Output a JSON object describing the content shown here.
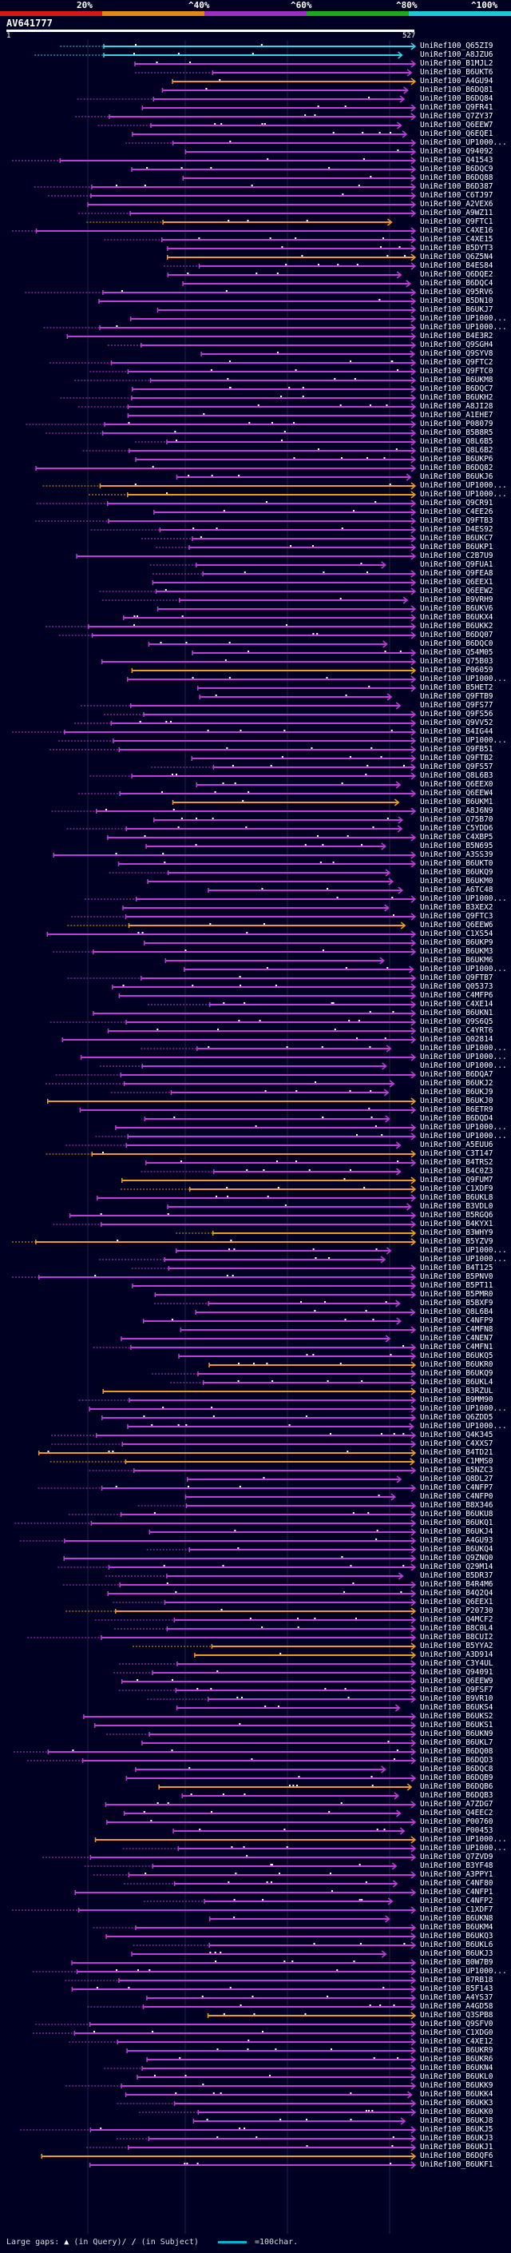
{
  "scale": {
    "labels": [
      "20%",
      "^40%",
      "^60%",
      "^80%",
      "^100%"
    ],
    "colors": [
      "#d81818",
      "#e08a1a",
      "#9b2fc0",
      "#1fa81f",
      "#1cc8d8"
    ]
  },
  "query": {
    "name": "AV641777",
    "start": "1",
    "end": "527"
  },
  "hit_color_main": "#c13bd9",
  "hit_color_orange": "#f09a1e",
  "hit_color_cyan": "#33d6e6",
  "hits": [
    "UniRef100_Q65ZI9",
    "UniRef100_A8JZU6",
    "UniRef100_B1MJL2",
    "UniRef100_B6UKT6",
    "UniRef100_A4GU94",
    "UniRef100_B6DQ81",
    "UniRef100_B6DQ84",
    "UniRef100_Q9FR41",
    "UniRef100_Q7ZY37",
    "UniRef100_Q6EEW7",
    "UniRef100_Q6EQE1",
    "UniRef100_UP1000...",
    "UniRef100_Q94092",
    "UniRef100_Q41543",
    "UniRef100_B6DQC9",
    "UniRef100_B6DQ88",
    "UniRef100_B6D387",
    "UniRef100_C6TJ97",
    "UniRef100_A2VEX6",
    "UniRef100_A9WZ11",
    "UniRef100_Q9FTC1",
    "UniRef100_C4XE16",
    "UniRef100_C4XE15",
    "UniRef100_B5DYT3",
    "UniRef100_Q6Z5N4",
    "UniRef100_B4ES84",
    "UniRef100_Q6DQE2",
    "UniRef100_B6DQC4",
    "UniRef100_Q95RV6",
    "UniRef100_B5DN10",
    "UniRef100_B6UKJ7",
    "UniRef100_UP1000...",
    "UniRef100_UP1000...",
    "UniRef100_B4E3R2",
    "UniRef100_Q9SGH4",
    "UniRef100_Q9SYV8",
    "UniRef100_Q9FTC2",
    "UniRef100_Q9FTC0",
    "UniRef100_B6UKM8",
    "UniRef100_B6DQC7",
    "UniRef100_B6UKH2",
    "UniRef100_A8JI28",
    "UniRef100_A1EHE7",
    "UniRef100_P08079",
    "UniRef100_B5B8R5",
    "UniRef100_Q8L6B5",
    "UniRef100_Q8L6B2",
    "UniRef100_B6UKP6",
    "UniRef100_B6DQ82",
    "UniRef100_B6UKJ6",
    "UniRef100_UP1000...",
    "UniRef100_UP1000...",
    "UniRef100_Q9CR91",
    "UniRef100_C4EE26",
    "UniRef100_Q9FTB3",
    "UniRef100_D4ES92",
    "UniRef100_B6UKC7",
    "UniRef100_B6UKP1",
    "UniRef100_C2B7U9",
    "UniRef100_Q9FUA1",
    "UniRef100_Q9FEA8",
    "UniRef100_Q6EEX1",
    "UniRef100_Q6EEW2",
    "UniRef100_B9VRH9",
    "UniRef100_B6UKV6",
    "UniRef100_B6UKX4",
    "UniRef100_B6UKK2",
    "UniRef100_B6DQ07",
    "UniRef100_B6DQC0",
    "UniRef100_Q54M05",
    "UniRef100_Q75B03",
    "UniRef100_P06059",
    "UniRef100_UP1000...",
    "UniRef100_B5HET2",
    "UniRef100_Q9FTB9",
    "UniRef100_Q9FS77",
    "UniRef100_Q9FS56",
    "UniRef100_Q9VV52",
    "UniRef100_B4IG44",
    "UniRef100_UP1000...",
    "UniRef100_Q9FB51",
    "UniRef100_Q9FTB2",
    "UniRef100_Q9FS57",
    "UniRef100_Q8L6B3",
    "UniRef100_Q6EEX0",
    "UniRef100_Q6EEW4",
    "UniRef100_B6UKM1",
    "UniRef100_A8J6N9",
    "UniRef100_Q75B70",
    "UniRef100_C5YDD6",
    "UniRef100_C4XBP5",
    "UniRef100_B5N695",
    "UniRef100_A3SS39",
    "UniRef100_B6UKT0",
    "UniRef100_B6UKQ9",
    "UniRef100_B6UKM0",
    "UniRef100_A6TC48",
    "UniRef100_UP1000...",
    "UniRef100_B3XEX2",
    "UniRef100_Q9FTC3",
    "UniRef100_Q6EEW6",
    "UniRef100_C1XS54",
    "UniRef100_B6UKP9",
    "UniRef100_B6UKM3",
    "UniRef100_B6UKM6",
    "UniRef100_UP1000...",
    "UniRef100_Q9FTB7",
    "UniRef100_Q05373",
    "UniRef100_C4MFP6",
    "UniRef100_C4XE14",
    "UniRef100_B6UKN1",
    "UniRef100_Q9S6Q5",
    "UniRef100_C4YRT6",
    "UniRef100_Q02814",
    "UniRef100_UP1000...",
    "UniRef100_UP1000...",
    "UniRef100_UP1000...",
    "UniRef100_B6DQA7",
    "UniRef100_B6UKJ2",
    "UniRef100_B6UKJ9",
    "UniRef100_B6UKJ0",
    "UniRef100_B6ETR9",
    "UniRef100_B6DQD4",
    "UniRef100_UP1000...",
    "UniRef100_UP1000...",
    "UniRef100_A5EUU6",
    "UniRef100_C3T147",
    "UniRef100_B4TRS2",
    "UniRef100_B4C0Z3",
    "UniRef100_Q9FUM7",
    "UniRef100_C1XDF9",
    "UniRef100_B6UKL8",
    "UniRef100_B3VDL0",
    "UniRef100_B5RGQ6",
    "UniRef100_B4KYX1",
    "UniRef100_B3WHY9",
    "UniRef100_B5YZV9",
    "UniRef100_UP1000...",
    "UniRef100_UP1000...",
    "UniRef100_B4T125",
    "UniRef100_B5PNV0",
    "UniRef100_B5PT11",
    "UniRef100_B5PMR0",
    "UniRef100_B5BXF9",
    "UniRef100_Q8L6B4",
    "UniRef100_C4NFP9",
    "UniRef100_C4MFN8",
    "UniRef100_C4NEN7",
    "UniRef100_C4MFN1",
    "UniRef100_B6UKQ5",
    "UniRef100_B6UKR0",
    "UniRef100_B6UKQ9",
    "UniRef100_B6UKL4",
    "UniRef100_B3RZUL",
    "UniRef100_B9MM90",
    "UniRef100_UP1000...",
    "UniRef100_Q6ZDD5",
    "UniRef100_UP1000...",
    "UniRef100_Q4K345",
    "UniRef100_C4XXS7",
    "UniRef100_B4TD21",
    "UniRef100_C1MMS0",
    "UniRef100_B5NZC3",
    "UniRef100_Q8DL27",
    "UniRef100_C4NFP7",
    "UniRef100_C4NFP0",
    "UniRef100_B8X346",
    "UniRef100_B6UKU8",
    "UniRef100_B6UKQ1",
    "UniRef100_B6UKJ4",
    "UniRef100_A4GU93",
    "UniRef100_B6UKQ4",
    "UniRef100_Q9ZNQ0",
    "UniRef100_Q29M14",
    "UniRef100_B5DR37",
    "UniRef100_B4R4M6",
    "UniRef100_B4Q2Q4",
    "UniRef100_Q6EEX1",
    "UniRef100_P20730",
    "UniRef100_Q4MCF2",
    "UniRef100_B8C0L4",
    "UniRef100_B8CUI2",
    "UniRef100_B5YYA2",
    "UniRef100_A3D914",
    "UniRef100_C3Y4UL",
    "UniRef100_Q94091",
    "UniRef100_Q6EEW9",
    "UniRef100_Q9FSF7",
    "UniRef100_B9VR10",
    "UniRef100_B6UKS4",
    "UniRef100_B6UKS2",
    "UniRef100_B6UKS1",
    "UniRef100_B6UKN9",
    "UniRef100_B6UKL7",
    "UniRef100_B6DQ08",
    "UniRef100_B6DQD3",
    "UniRef100_B6DQC8",
    "UniRef100_B6DQB9",
    "UniRef100_B6DQB6",
    "UniRef100_B6DQB3",
    "UniRef100_A7ZDG7",
    "UniRef100_Q4EEC2",
    "UniRef100_P00760",
    "UniRef100_P00453",
    "UniRef100_UP1000...",
    "UniRef100_UP1000...",
    "UniRef100_Q7ZVD9",
    "UniRef100_B3YF48",
    "UniRef100_A3PPY1",
    "UniRef100_C4NF80",
    "UniRef100_C4NFP1",
    "UniRef100_C4NFP2",
    "UniRef100_C1XDF7",
    "UniRef100_B6UKN8",
    "UniRef100_B6UKM4",
    "UniRef100_B6UKQ3",
    "UniRef100_B6UKL6",
    "UniRef100_B6UKJ3",
    "UniRef100_B0W7B9",
    "UniRef100_UP1000...",
    "UniRef100_B7RB18",
    "UniRef100_B5F143",
    "UniRef100_A4YS37",
    "UniRef100_A4GD58",
    "UniRef100_Q3SPB8",
    "UniRef100_Q9SFV0",
    "UniRef100_C1XDG0",
    "UniRef100_C4XE12",
    "UniRef100_B6UKR9",
    "UniRef100_B6UKR6",
    "UniRef100_B6UKN4",
    "UniRef100_B6UKL0",
    "UniRef100_B6UKK9",
    "UniRef100_B6UKK4",
    "UniRef100_B6UKK3",
    "UniRef100_B6UKK0",
    "UniRef100_B6UKJ8",
    "UniRef100_B6UKJ5",
    "UniRef100_B6UKJ3",
    "UniRef100_B6UKJ1",
    "UniRef100_B6DQF6",
    "UniRef100_B6UKF1"
  ],
  "legend": {
    "large_gaps": "Large gaps:",
    "in_query": "(in Query)/",
    "in_subject": "(in Subject)",
    "scale_text": "=100char."
  }
}
